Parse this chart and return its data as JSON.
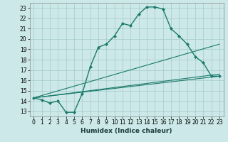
{
  "xlabel": "Humidex (Indice chaleur)",
  "background_color": "#cce8e8",
  "line_color": "#1a7a6a",
  "grid_color": "#aacece",
  "xlim": [
    -0.5,
    23.5
  ],
  "ylim": [
    12.5,
    23.5
  ],
  "yticks": [
    13,
    14,
    15,
    16,
    17,
    18,
    19,
    20,
    21,
    22,
    23
  ],
  "xticks": [
    0,
    1,
    2,
    3,
    4,
    5,
    6,
    7,
    8,
    9,
    10,
    11,
    12,
    13,
    14,
    15,
    16,
    17,
    18,
    19,
    20,
    21,
    22,
    23
  ],
  "series": [
    {
      "x": [
        0,
        1,
        2,
        3,
        4,
        5,
        6,
        7,
        8,
        9,
        10,
        11,
        12,
        13,
        14,
        15,
        16,
        17,
        18,
        19,
        20,
        21,
        22,
        23
      ],
      "y": [
        14.3,
        14.1,
        13.8,
        14.0,
        12.9,
        12.9,
        14.7,
        17.3,
        19.2,
        19.5,
        20.3,
        21.5,
        21.3,
        22.4,
        23.1,
        23.1,
        22.9,
        21.0,
        20.3,
        19.5,
        18.3,
        17.7,
        16.4,
        16.4
      ],
      "marker": true,
      "lw": 1.0
    },
    {
      "x": [
        0,
        23
      ],
      "y": [
        14.3,
        16.4
      ],
      "marker": false,
      "lw": 0.8
    },
    {
      "x": [
        0,
        23
      ],
      "y": [
        14.3,
        19.5
      ],
      "marker": false,
      "lw": 0.8
    },
    {
      "x": [
        0,
        23
      ],
      "y": [
        14.3,
        16.6
      ],
      "marker": false,
      "lw": 0.8
    }
  ],
  "tick_fontsize": 5.5,
  "xlabel_fontsize": 6.5
}
